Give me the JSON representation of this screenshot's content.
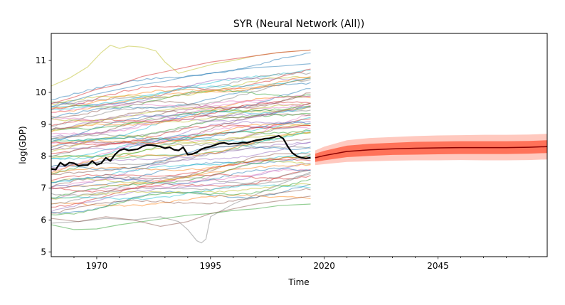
{
  "chart_data": {
    "type": "line",
    "title": "SYR (Neural Network (All))",
    "xlabel": "Time",
    "ylabel": "log(GDP)",
    "xlim": [
      1960,
      2069
    ],
    "ylim": [
      4.85,
      11.85
    ],
    "x_ticks": [
      1970,
      1995,
      2020,
      2045
    ],
    "y_ticks": [
      5,
      6,
      7,
      8,
      9,
      10,
      11
    ],
    "grid": false,
    "legend": "none",
    "history_years": [
      1960,
      2017
    ],
    "forecast_years": [
      2018,
      2069
    ],
    "highlight_series": {
      "color": "#000000",
      "points": [
        [
          1960,
          7.6
        ],
        [
          1961,
          7.58
        ],
        [
          1962,
          7.8
        ],
        [
          1963,
          7.7
        ],
        [
          1964,
          7.8
        ],
        [
          1965,
          7.78
        ],
        [
          1966,
          7.7
        ],
        [
          1967,
          7.72
        ],
        [
          1968,
          7.72
        ],
        [
          1969,
          7.85
        ],
        [
          1970,
          7.73
        ],
        [
          1971,
          7.78
        ],
        [
          1972,
          7.95
        ],
        [
          1973,
          7.85
        ],
        [
          1974,
          8.05
        ],
        [
          1975,
          8.18
        ],
        [
          1976,
          8.23
        ],
        [
          1977,
          8.18
        ],
        [
          1978,
          8.2
        ],
        [
          1979,
          8.22
        ],
        [
          1980,
          8.3
        ],
        [
          1981,
          8.35
        ],
        [
          1982,
          8.35
        ],
        [
          1983,
          8.33
        ],
        [
          1984,
          8.3
        ],
        [
          1985,
          8.25
        ],
        [
          1986,
          8.28
        ],
        [
          1987,
          8.2
        ],
        [
          1988,
          8.18
        ],
        [
          1989,
          8.28
        ],
        [
          1990,
          8.05
        ],
        [
          1991,
          8.07
        ],
        [
          1992,
          8.12
        ],
        [
          1993,
          8.22
        ],
        [
          1994,
          8.27
        ],
        [
          1995,
          8.3
        ],
        [
          1996,
          8.35
        ],
        [
          1997,
          8.4
        ],
        [
          1998,
          8.42
        ],
        [
          1999,
          8.38
        ],
        [
          2000,
          8.4
        ],
        [
          2001,
          8.4
        ],
        [
          2002,
          8.43
        ],
        [
          2003,
          8.42
        ],
        [
          2004,
          8.46
        ],
        [
          2005,
          8.5
        ],
        [
          2006,
          8.52
        ],
        [
          2007,
          8.55
        ],
        [
          2008,
          8.56
        ],
        [
          2009,
          8.6
        ],
        [
          2010,
          8.64
        ],
        [
          2011,
          8.55
        ],
        [
          2012,
          8.3
        ],
        [
          2013,
          8.1
        ],
        [
          2014,
          8.0
        ],
        [
          2015,
          7.95
        ],
        [
          2016,
          7.93
        ],
        [
          2017,
          7.95
        ]
      ]
    },
    "forecast": {
      "color": "#ff6347",
      "median_color": "#8b0000",
      "years": [
        2018,
        2020,
        2025,
        2030,
        2035,
        2040,
        2045,
        2050,
        2055,
        2060,
        2065,
        2069
      ],
      "median": [
        7.95,
        8.02,
        8.15,
        8.2,
        8.23,
        8.25,
        8.26,
        8.27,
        8.27,
        8.27,
        8.28,
        8.3
      ],
      "inner_low": [
        7.82,
        7.87,
        7.97,
        8.01,
        8.04,
        8.05,
        8.06,
        8.07,
        8.07,
        8.07,
        8.08,
        8.1
      ],
      "inner_high": [
        8.08,
        8.17,
        8.33,
        8.39,
        8.42,
        8.45,
        8.46,
        8.47,
        8.47,
        8.47,
        8.48,
        8.5
      ],
      "outer_low": [
        7.72,
        7.75,
        7.82,
        7.84,
        7.86,
        7.87,
        7.87,
        7.88,
        7.87,
        7.87,
        7.88,
        7.9
      ],
      "outer_high": [
        8.18,
        8.3,
        8.5,
        8.57,
        8.6,
        8.63,
        8.65,
        8.66,
        8.67,
        8.67,
        8.68,
        8.7
      ]
    },
    "background_series": {
      "count": 72,
      "opacity": 0.5,
      "palette": [
        "#1f77b4",
        "#ff7f0e",
        "#2ca02c",
        "#d62728",
        "#9467bd",
        "#8c564b",
        "#e377c2",
        "#7f7f7f",
        "#bcbd22",
        "#17becf"
      ],
      "special": [
        {
          "color": "#bcbd22",
          "points": [
            [
              1960,
              10.2
            ],
            [
              1964,
              10.45
            ],
            [
              1968,
              10.8
            ],
            [
              1971,
              11.25
            ],
            [
              1973,
              11.48
            ],
            [
              1975,
              11.38
            ],
            [
              1977,
              11.45
            ],
            [
              1980,
              11.42
            ],
            [
              1983,
              11.3
            ],
            [
              1985,
              10.95
            ],
            [
              1988,
              10.6
            ],
            [
              1992,
              10.75
            ],
            [
              1996,
              10.9
            ],
            [
              2000,
              11.0
            ],
            [
              2005,
              11.15
            ],
            [
              2010,
              11.25
            ],
            [
              2017,
              11.33
            ]
          ]
        },
        {
          "color": "#7f7f7f",
          "points": [
            [
              1960,
              5.9
            ],
            [
              1966,
              5.95
            ],
            [
              1972,
              6.05
            ],
            [
              1978,
              6.0
            ],
            [
              1984,
              6.1
            ],
            [
              1988,
              5.95
            ],
            [
              1990,
              5.7
            ],
            [
              1992,
              5.35
            ],
            [
              1993,
              5.28
            ],
            [
              1994,
              5.4
            ],
            [
              1995,
              6.1
            ],
            [
              2000,
              6.5
            ],
            [
              2005,
              6.8
            ],
            [
              2010,
              7.1
            ],
            [
              2017,
              7.5
            ]
          ]
        },
        {
          "color": "#2ca02c",
          "points": [
            [
              1960,
              5.85
            ],
            [
              1965,
              5.7
            ],
            [
              1970,
              5.72
            ],
            [
              1975,
              5.85
            ],
            [
              1980,
              5.95
            ],
            [
              1985,
              6.05
            ],
            [
              1990,
              6.15
            ],
            [
              1995,
              6.2
            ],
            [
              2000,
              6.3
            ],
            [
              2005,
              6.35
            ],
            [
              2010,
              6.45
            ],
            [
              2017,
              6.5
            ]
          ]
        },
        {
          "color": "#8c564b",
          "points": [
            [
              1960,
              6.05
            ],
            [
              1966,
              5.95
            ],
            [
              1972,
              6.1
            ],
            [
              1978,
              6.0
            ],
            [
              1984,
              5.8
            ],
            [
              1990,
              5.95
            ],
            [
              1995,
              6.2
            ],
            [
              2000,
              6.35
            ],
            [
              2005,
              6.5
            ],
            [
              2010,
              6.6
            ],
            [
              2017,
              6.75
            ]
          ]
        },
        {
          "color": "#d62728",
          "points": [
            [
              1960,
              9.65
            ],
            [
              1965,
              9.85
            ],
            [
              1970,
              10.1
            ],
            [
              1975,
              10.25
            ],
            [
              1980,
              10.5
            ],
            [
              1985,
              10.65
            ],
            [
              1990,
              10.8
            ],
            [
              1995,
              10.95
            ],
            [
              2000,
              11.05
            ],
            [
              2005,
              11.15
            ],
            [
              2010,
              11.25
            ],
            [
              2017,
              11.33
            ]
          ]
        },
        {
          "color": "#1f77b4",
          "points": [
            [
              1960,
              9.55
            ],
            [
              1965,
              9.75
            ],
            [
              1970,
              9.95
            ],
            [
              1975,
              10.1
            ],
            [
              1980,
              10.25
            ],
            [
              1985,
              10.35
            ],
            [
              1990,
              10.5
            ],
            [
              1995,
              10.6
            ],
            [
              2000,
              10.7
            ],
            [
              2005,
              10.78
            ],
            [
              2010,
              10.82
            ],
            [
              2017,
              10.9
            ]
          ]
        }
      ]
    }
  }
}
